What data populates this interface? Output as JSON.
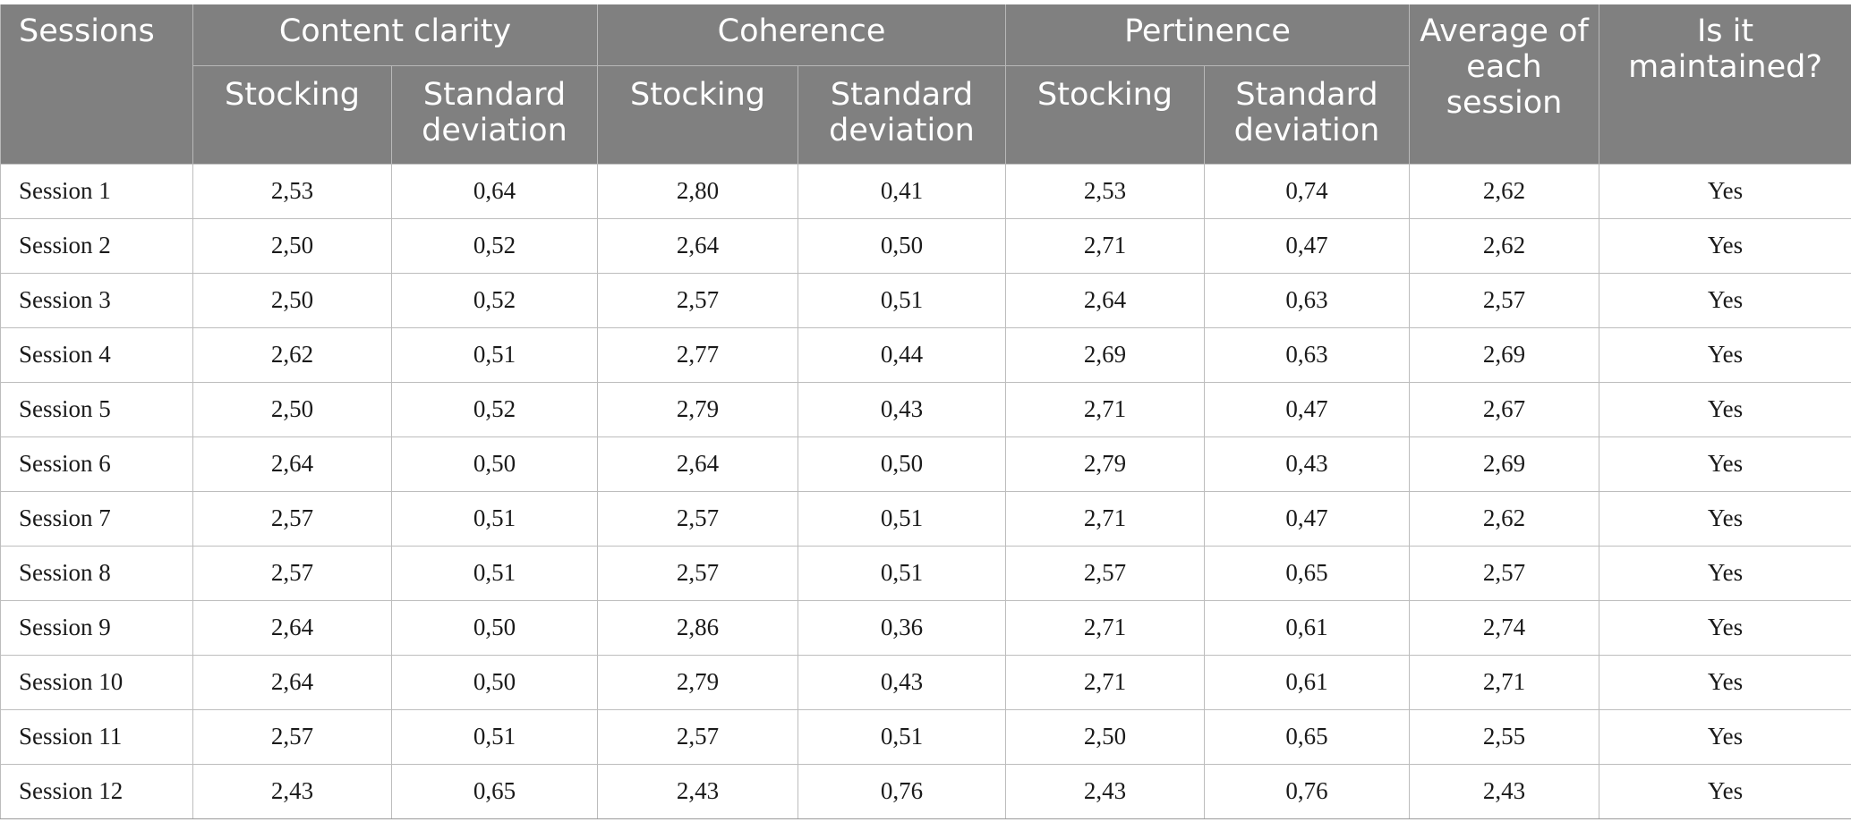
{
  "header": {
    "sessions": "Sessions",
    "content_clarity": "Content clarity",
    "coherence": "Coherence",
    "pertinence": "Pertinence",
    "average": "Average of each session",
    "maintained": "Is it maintained?",
    "stocking": "Stocking",
    "std_dev": "Standard deviation"
  },
  "rows": [
    [
      "Session 1",
      "2,53",
      "0,64",
      "2,80",
      "0,41",
      "2,53",
      "0,74",
      "2,62",
      "Yes"
    ],
    [
      "Session 2",
      "2,50",
      "0,52",
      "2,64",
      "0,50",
      "2,71",
      "0,47",
      "2,62",
      "Yes"
    ],
    [
      "Session 3",
      "2,50",
      "0,52",
      "2,57",
      "0,51",
      "2,64",
      "0,63",
      "2,57",
      "Yes"
    ],
    [
      "Session 4",
      "2,62",
      "0,51",
      "2,77",
      "0,44",
      "2,69",
      "0,63",
      "2,69",
      "Yes"
    ],
    [
      "Session 5",
      "2,50",
      "0,52",
      "2,79",
      "0,43",
      "2,71",
      "0,47",
      "2,67",
      "Yes"
    ],
    [
      "Session 6",
      "2,64",
      "0,50",
      "2,64",
      "0,50",
      "2,79",
      "0,43",
      "2,69",
      "Yes"
    ],
    [
      "Session 7",
      "2,57",
      "0,51",
      "2,57",
      "0,51",
      "2,71",
      "0,47",
      "2,62",
      "Yes"
    ],
    [
      "Session 8",
      "2,57",
      "0,51",
      "2,57",
      "0,51",
      "2,57",
      "0,65",
      "2,57",
      "Yes"
    ],
    [
      "Session 9",
      "2,64",
      "0,50",
      "2,86",
      "0,36",
      "2,71",
      "0,61",
      "2,74",
      "Yes"
    ],
    [
      "Session 10",
      "2,64",
      "0,50",
      "2,79",
      "0,43",
      "2,71",
      "0,61",
      "2,71",
      "Yes"
    ],
    [
      "Session 11",
      "2,57",
      "0,51",
      "2,57",
      "0,51",
      "2,50",
      "0,65",
      "2,55",
      "Yes"
    ],
    [
      "Session 12",
      "2,43",
      "0,65",
      "2,43",
      "0,76",
      "2,43",
      "0,76",
      "2,43",
      "Yes"
    ]
  ]
}
